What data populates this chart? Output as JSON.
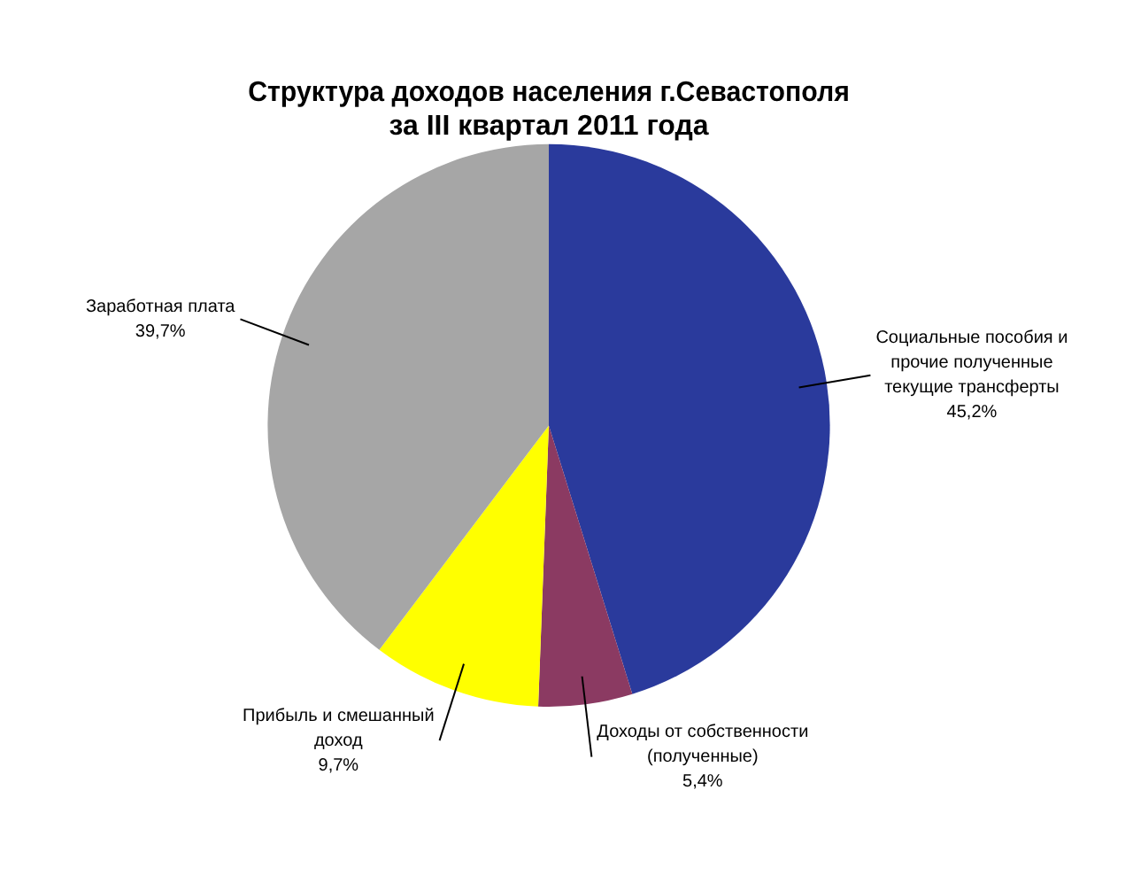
{
  "chart_data": {
    "type": "pie",
    "title": "Структура доходов населения г.Севастополя\nза III квартал 2011 года",
    "categories": [
      "Социальные пособия и прочие полученные текущие трансферты",
      "Доходы от собственности (полученные)",
      "Прибыль и смешанный доход",
      "Заработная плата"
    ],
    "values": [
      45.2,
      5.4,
      9.7,
      39.7
    ],
    "value_labels": [
      "45,2%",
      "5,4%",
      "9,7%",
      "39,7%"
    ],
    "colors": [
      "#2a3a9c",
      "#8b3a62",
      "#ffff00",
      "#a6a6a6"
    ],
    "legend": false
  }
}
